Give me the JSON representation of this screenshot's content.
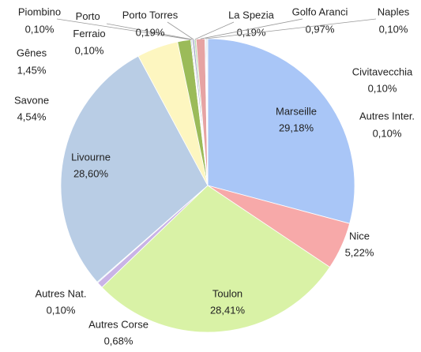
{
  "chart_data": {
    "type": "pie",
    "categories": [
      "Marseille",
      "Nice",
      "Toulon",
      "Autres Corse",
      "Autres Nat.",
      "Livourne",
      "Savone",
      "Gênes",
      "Piombino",
      "Porto Ferraio",
      "Porto Torres",
      "La Spezia",
      "Golfo Aranci",
      "Naples",
      "Civitavecchia",
      "Autres Inter."
    ],
    "values": [
      29.18,
      5.22,
      28.41,
      0.68,
      0.1,
      28.6,
      4.54,
      1.45,
      0.1,
      0.1,
      0.19,
      0.19,
      0.97,
      0.1,
      0.1,
      0.1
    ],
    "value_labels": [
      "29,18%",
      "5,22%",
      "28,41%",
      "0,68%",
      "0,10%",
      "28,60%",
      "4,54%",
      "1,45%",
      "0,10%",
      "0,10%",
      "0,19%",
      "0,19%",
      "0,97%",
      "0,10%",
      "0,10%",
      "0,10%"
    ],
    "colors": [
      "#a9c6f7",
      "#f7a9a9",
      "#d9f2a6",
      "#c9b3e6",
      "#a9d4f0",
      "#b9cde5",
      "#fdf6c0",
      "#9bbb59",
      "#8fb0d8",
      "#c0c0c0",
      "#a0a0c8",
      "#b8d8b0",
      "#e6a3a3",
      "#b0c8e8",
      "#d0d0d0",
      "#c8d8f0"
    ]
  }
}
